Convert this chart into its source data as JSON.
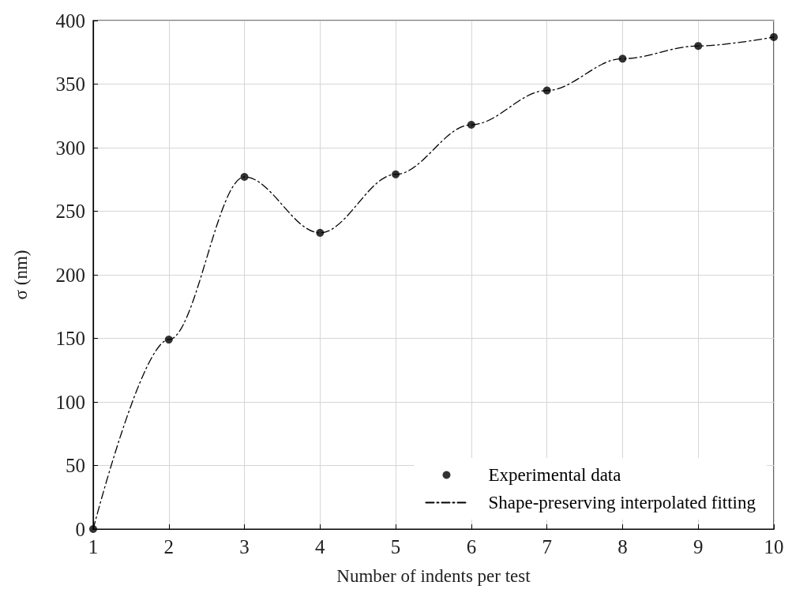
{
  "chart_data": {
    "type": "scatter",
    "xlabel": "Number of indents per test",
    "ylabel": "σ (nm)",
    "series": [
      {
        "name": "Experimental data",
        "color": "#000000",
        "marker": "circle",
        "x": [
          1,
          2,
          3,
          4,
          5,
          6,
          7,
          8,
          9,
          10
        ],
        "values": [
          0,
          149,
          277,
          233,
          279,
          318,
          345,
          370,
          380,
          387
        ]
      },
      {
        "name": "Shape-preserving interpolated fitting",
        "type": "line",
        "color": "#000000",
        "marker": "none",
        "line_style": "dashed",
        "x": [
          1,
          2,
          3,
          4,
          5,
          6,
          7,
          8,
          9,
          10
        ],
        "values": [
          0,
          149,
          277,
          233,
          279,
          318,
          345,
          370,
          380,
          387
        ]
      }
    ],
    "xlim": [
      1,
      10
    ],
    "xticks": [
      1,
      2,
      3,
      4,
      5,
      6,
      7,
      8,
      9,
      10
    ],
    "ylim": [
      0,
      400
    ],
    "yticks": [
      0,
      50,
      100,
      150,
      200,
      250,
      300,
      350,
      400
    ],
    "grid": true,
    "legend": "bottom right"
  }
}
